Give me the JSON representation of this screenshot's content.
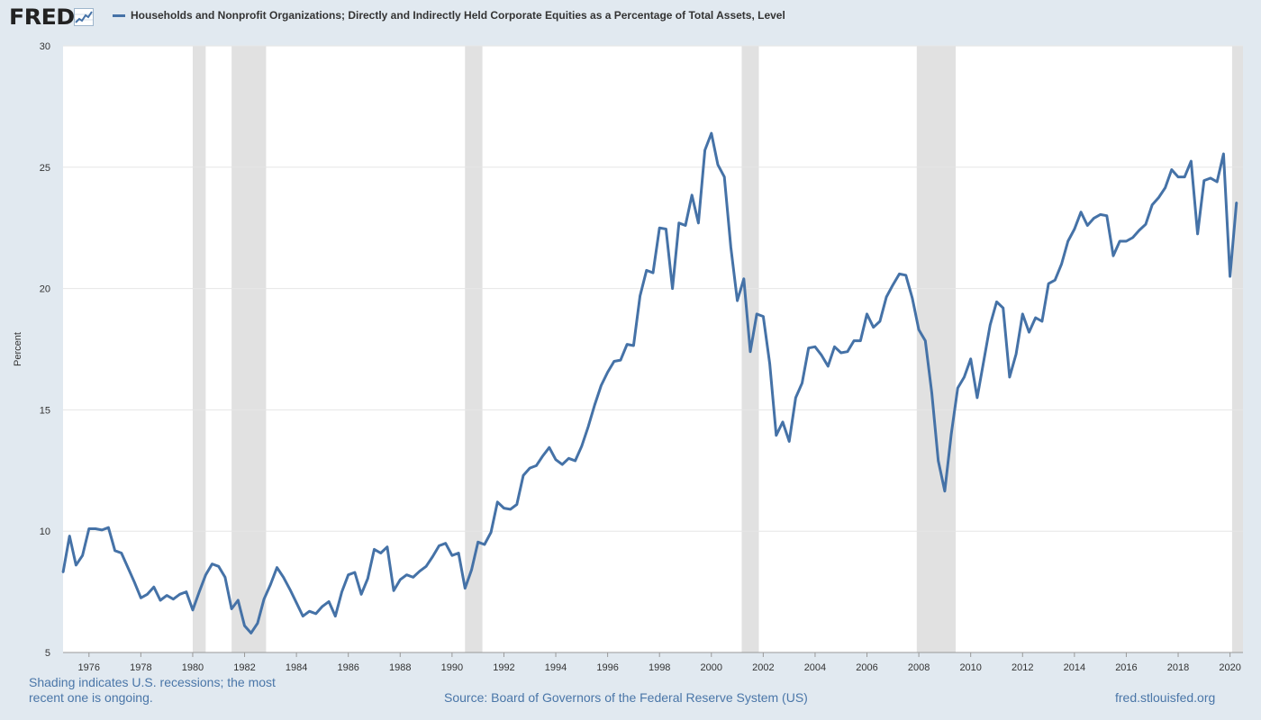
{
  "header": {
    "logo_text": "FRED",
    "legend_text": "Households and Nonprofit Organizations; Directly and Indirectly Held Corporate Equities as a Percentage of Total Assets, Level",
    "series_color": "#4572a7"
  },
  "footer": {
    "shading_note": "Shading indicates U.S. recessions; the most recent one is ongoing.",
    "source": "Source: Board of Governors of the Federal Reserve System (US)",
    "url": "fred.stlouisfed.org"
  },
  "chart_data": {
    "type": "line",
    "ylabel": "Percent",
    "xlabel": "",
    "title": "",
    "xlim": [
      1975.0,
      2020.5
    ],
    "ylim": [
      5,
      30
    ],
    "yticks": [
      5,
      10,
      15,
      20,
      25,
      30
    ],
    "xticks": [
      1976,
      1978,
      1980,
      1982,
      1984,
      1986,
      1988,
      1990,
      1992,
      1994,
      1996,
      1998,
      2000,
      2002,
      2004,
      2006,
      2008,
      2010,
      2012,
      2014,
      2016,
      2018,
      2020
    ],
    "grid": true,
    "recessions": [
      [
        1980.0,
        1980.5
      ],
      [
        1981.5,
        1982.83
      ],
      [
        1990.5,
        1991.17
      ],
      [
        2001.17,
        2001.83
      ],
      [
        2007.92,
        2009.42
      ],
      [
        2020.08,
        2020.5
      ]
    ],
    "series": [
      {
        "name": "Households and Nonprofit Organizations; Directly and Indirectly Held Corporate Equities as a Percentage of Total Assets, Level",
        "color": "#4572a7",
        "x": [
          1975.0,
          1975.25,
          1975.5,
          1975.75,
          1976.0,
          1976.25,
          1976.5,
          1976.75,
          1977.0,
          1977.25,
          1977.5,
          1977.75,
          1978.0,
          1978.25,
          1978.5,
          1978.75,
          1979.0,
          1979.25,
          1979.5,
          1979.75,
          1980.0,
          1980.25,
          1980.5,
          1980.75,
          1981.0,
          1981.25,
          1981.5,
          1981.75,
          1982.0,
          1982.25,
          1982.5,
          1982.75,
          1983.0,
          1983.25,
          1983.5,
          1983.75,
          1984.0,
          1984.25,
          1984.5,
          1984.75,
          1985.0,
          1985.25,
          1985.5,
          1985.75,
          1986.0,
          1986.25,
          1986.5,
          1986.75,
          1987.0,
          1987.25,
          1987.5,
          1987.75,
          1988.0,
          1988.25,
          1988.5,
          1988.75,
          1989.0,
          1989.25,
          1989.5,
          1989.75,
          1990.0,
          1990.25,
          1990.5,
          1990.75,
          1991.0,
          1991.25,
          1991.5,
          1991.75,
          1992.0,
          1992.25,
          1992.5,
          1992.75,
          1993.0,
          1993.25,
          1993.5,
          1993.75,
          1994.0,
          1994.25,
          1994.5,
          1994.75,
          1995.0,
          1995.25,
          1995.5,
          1995.75,
          1996.0,
          1996.25,
          1996.5,
          1996.75,
          1997.0,
          1997.25,
          1997.5,
          1997.75,
          1998.0,
          1998.25,
          1998.5,
          1998.75,
          1999.0,
          1999.25,
          1999.5,
          1999.75,
          2000.0,
          2000.25,
          2000.5,
          2000.75,
          2001.0,
          2001.25,
          2001.5,
          2001.75,
          2002.0,
          2002.25,
          2002.5,
          2002.75,
          2003.0,
          2003.25,
          2003.5,
          2003.75,
          2004.0,
          2004.25,
          2004.5,
          2004.75,
          2005.0,
          2005.25,
          2005.5,
          2005.75,
          2006.0,
          2006.25,
          2006.5,
          2006.75,
          2007.0,
          2007.25,
          2007.5,
          2007.75,
          2008.0,
          2008.25,
          2008.5,
          2008.75,
          2009.0,
          2009.25,
          2009.5,
          2009.75,
          2010.0,
          2010.25,
          2010.5,
          2010.75,
          2011.0,
          2011.25,
          2011.5,
          2011.75,
          2012.0,
          2012.25,
          2012.5,
          2012.75,
          2013.0,
          2013.25,
          2013.5,
          2013.75,
          2014.0,
          2014.25,
          2014.5,
          2014.75,
          2015.0,
          2015.25,
          2015.5,
          2015.75,
          2016.0,
          2016.25,
          2016.5,
          2016.75,
          2017.0,
          2017.25,
          2017.5,
          2017.75,
          2018.0,
          2018.25,
          2018.5,
          2018.75,
          2019.0,
          2019.25,
          2019.5,
          2019.75,
          2020.0,
          2020.25
        ],
        "y": [
          8.3,
          9.8,
          8.6,
          9.0,
          10.1,
          10.1,
          10.05,
          10.15,
          9.2,
          9.1,
          8.5,
          7.9,
          7.25,
          7.4,
          7.7,
          7.15,
          7.35,
          7.2,
          7.4,
          7.5,
          6.75,
          7.5,
          8.2,
          8.65,
          8.55,
          8.1,
          6.8,
          7.15,
          6.1,
          5.8,
          6.2,
          7.2,
          7.8,
          8.5,
          8.1,
          7.6,
          7.05,
          6.5,
          6.7,
          6.6,
          6.9,
          7.1,
          6.5,
          7.5,
          8.2,
          8.3,
          7.4,
          8.05,
          9.25,
          9.1,
          9.35,
          7.55,
          8.0,
          8.2,
          8.1,
          8.35,
          8.55,
          8.95,
          9.4,
          9.5,
          9.0,
          9.1,
          7.65,
          8.4,
          9.55,
          9.45,
          9.95,
          11.2,
          10.95,
          10.9,
          11.1,
          12.3,
          12.6,
          12.7,
          13.1,
          13.45,
          12.95,
          12.75,
          13.0,
          12.9,
          13.5,
          14.3,
          15.2,
          16.0,
          16.55,
          17.0,
          17.05,
          17.7,
          17.65,
          19.7,
          20.75,
          20.65,
          22.5,
          22.45,
          20.0,
          22.7,
          22.6,
          23.85,
          22.7,
          25.7,
          26.4,
          25.1,
          24.6,
          21.7,
          19.5,
          20.4,
          17.4,
          18.95,
          18.85,
          16.9,
          13.95,
          14.5,
          13.7,
          15.5,
          16.1,
          17.55,
          17.6,
          17.25,
          16.8,
          17.6,
          17.35,
          17.4,
          17.85,
          17.85,
          18.95,
          18.4,
          18.65,
          19.65,
          20.15,
          20.6,
          20.55,
          19.6,
          18.3,
          17.85,
          15.7,
          12.9,
          11.65,
          14.0,
          15.9,
          16.35,
          17.1,
          15.5,
          17.0,
          18.5,
          19.45,
          19.2,
          16.35,
          17.3,
          18.95,
          18.2,
          18.8,
          18.65,
          20.2,
          20.35,
          21.0,
          21.95,
          22.45,
          23.15,
          22.6,
          22.9,
          23.05,
          23.0,
          21.35,
          21.95,
          21.95,
          22.1,
          22.4,
          22.65,
          23.45,
          23.75,
          24.15,
          24.9,
          24.6,
          24.6,
          25.25,
          22.25,
          24.45,
          24.55,
          24.4,
          25.55,
          20.5,
          23.55
        ]
      }
    ]
  }
}
